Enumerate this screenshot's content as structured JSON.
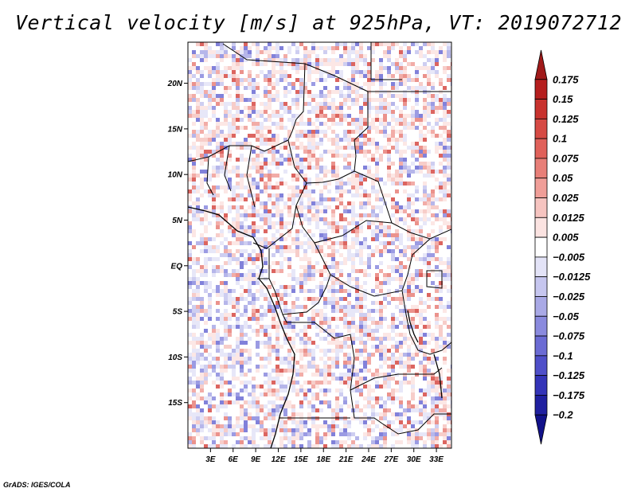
{
  "title": "Vertical velocity [m/s] at 925hPa, VT: 2019072712",
  "credit": "GrADS: IGES/COLA",
  "lat_labels": [
    "20N",
    "15N",
    "10N",
    "5N",
    "EQ",
    "5S",
    "10S",
    "15S"
  ],
  "lat_values": [
    20,
    15,
    10,
    5,
    0,
    -5,
    -10,
    -15
  ],
  "lon_labels": [
    "3E",
    "6E",
    "9E",
    "12E",
    "15E",
    "18E",
    "21E",
    "24E",
    "27E",
    "30E",
    "33E"
  ],
  "lon_values": [
    3,
    6,
    9,
    12,
    15,
    18,
    21,
    24,
    27,
    30,
    33
  ],
  "map_extent": {
    "lon_min": 0,
    "lon_max": 35,
    "lat_min": -20,
    "lat_max": 24.5
  },
  "colorbar": {
    "labels": [
      "0.175",
      "0.15",
      "0.125",
      "0.1",
      "0.075",
      "0.05",
      "0.025",
      "0.0125",
      "0.005",
      "−0.005",
      "−0.0125",
      "−0.025",
      "−0.05",
      "−0.075",
      "−0.1",
      "−0.125",
      "−0.175",
      "−0.2"
    ],
    "colors": [
      "#a01a1a",
      "#b51e1e",
      "#c8322e",
      "#d64a44",
      "#e0615a",
      "#e87f78",
      "#f09e98",
      "#f6c4c0",
      "#fbe3e1",
      "#ffffff",
      "#e3e3f7",
      "#c6c6ef",
      "#a9a9e6",
      "#8a8ade",
      "#6b6bd4",
      "#4f4fc9",
      "#3434b8",
      "#2020a0",
      "#12128a"
    ]
  }
}
